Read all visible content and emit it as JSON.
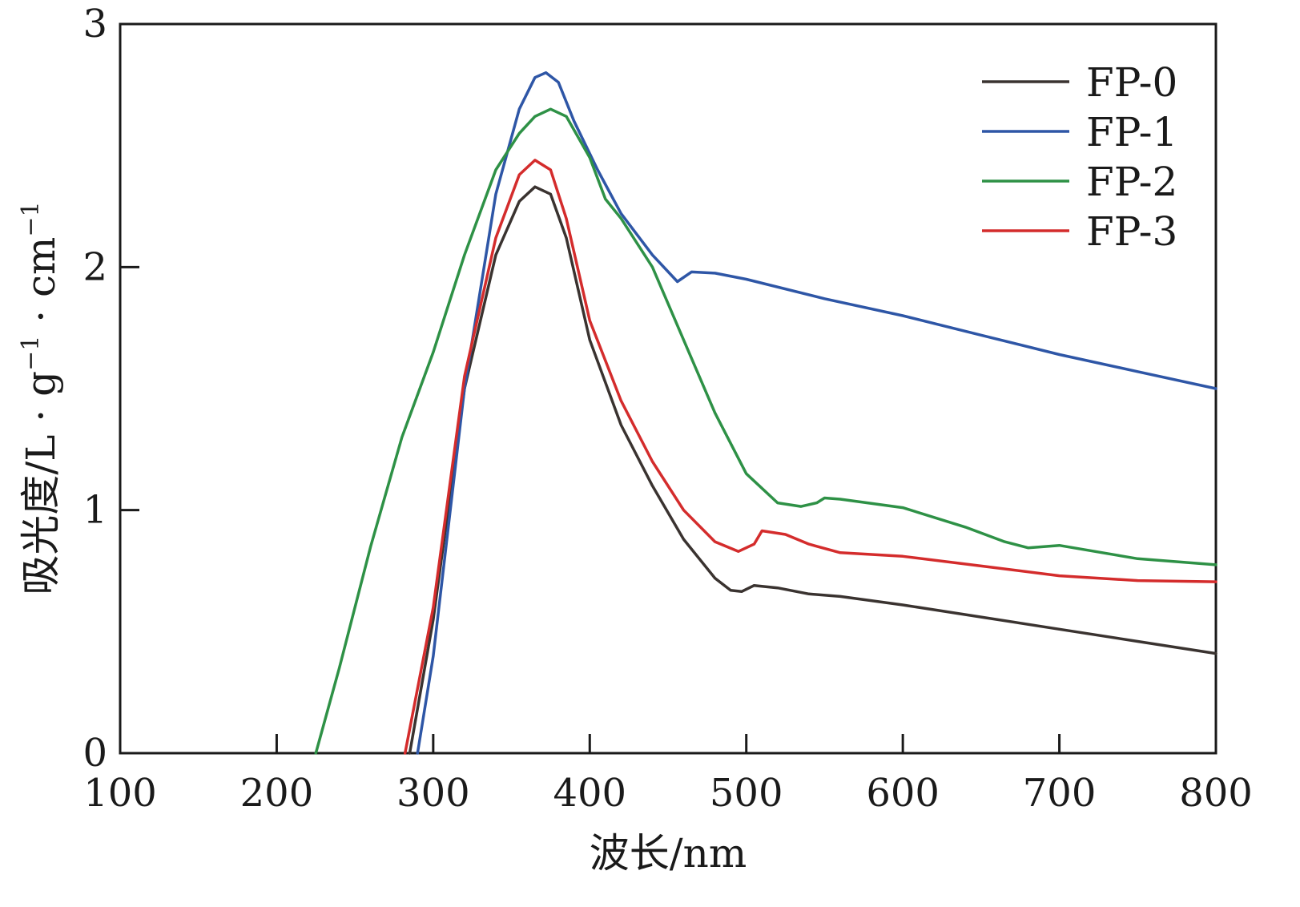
{
  "chart_data": {
    "type": "line",
    "title": "",
    "xlabel": "波长/nm",
    "ylabel": {
      "parts": [
        "吸光度/L · g",
        "−1",
        " · cm",
        "−1"
      ]
    },
    "xlim": [
      100,
      800
    ],
    "ylim": [
      0,
      3
    ],
    "xticks": [
      100,
      200,
      300,
      400,
      500,
      600,
      700,
      800
    ],
    "yticks": [
      0,
      1,
      2,
      3
    ],
    "grid": false,
    "legend_position": "top-right",
    "series": [
      {
        "name": "FP-0",
        "color": "#3a3330",
        "points": [
          [
            285,
            0
          ],
          [
            300,
            0.55
          ],
          [
            320,
            1.5
          ],
          [
            340,
            2.05
          ],
          [
            355,
            2.27
          ],
          [
            365,
            2.33
          ],
          [
            375,
            2.3
          ],
          [
            385,
            2.12
          ],
          [
            400,
            1.7
          ],
          [
            420,
            1.35
          ],
          [
            440,
            1.1
          ],
          [
            460,
            0.88
          ],
          [
            480,
            0.72
          ],
          [
            490,
            0.67
          ],
          [
            497,
            0.665
          ],
          [
            505,
            0.69
          ],
          [
            520,
            0.68
          ],
          [
            540,
            0.655
          ],
          [
            560,
            0.645
          ],
          [
            600,
            0.61
          ],
          [
            650,
            0.56
          ],
          [
            700,
            0.51
          ],
          [
            750,
            0.46
          ],
          [
            800,
            0.41
          ]
        ]
      },
      {
        "name": "FP-1",
        "color": "#2e56a6",
        "points": [
          [
            290,
            0
          ],
          [
            300,
            0.4
          ],
          [
            320,
            1.5
          ],
          [
            340,
            2.3
          ],
          [
            355,
            2.65
          ],
          [
            365,
            2.78
          ],
          [
            372,
            2.8
          ],
          [
            380,
            2.76
          ],
          [
            390,
            2.6
          ],
          [
            405,
            2.4
          ],
          [
            420,
            2.22
          ],
          [
            440,
            2.05
          ],
          [
            456,
            1.94
          ],
          [
            465,
            1.98
          ],
          [
            480,
            1.975
          ],
          [
            500,
            1.95
          ],
          [
            550,
            1.87
          ],
          [
            600,
            1.8
          ],
          [
            650,
            1.72
          ],
          [
            700,
            1.64
          ],
          [
            750,
            1.57
          ],
          [
            800,
            1.5
          ]
        ]
      },
      {
        "name": "FP-2",
        "color": "#2e9146",
        "points": [
          [
            225,
            0
          ],
          [
            240,
            0.35
          ],
          [
            260,
            0.85
          ],
          [
            280,
            1.3
          ],
          [
            300,
            1.65
          ],
          [
            320,
            2.05
          ],
          [
            340,
            2.4
          ],
          [
            355,
            2.55
          ],
          [
            365,
            2.62
          ],
          [
            375,
            2.65
          ],
          [
            385,
            2.62
          ],
          [
            400,
            2.45
          ],
          [
            410,
            2.28
          ],
          [
            420,
            2.2
          ],
          [
            440,
            2.0
          ],
          [
            460,
            1.7
          ],
          [
            480,
            1.4
          ],
          [
            500,
            1.15
          ],
          [
            520,
            1.03
          ],
          [
            535,
            1.015
          ],
          [
            545,
            1.03
          ],
          [
            550,
            1.05
          ],
          [
            560,
            1.045
          ],
          [
            600,
            1.01
          ],
          [
            640,
            0.93
          ],
          [
            665,
            0.87
          ],
          [
            680,
            0.845
          ],
          [
            700,
            0.855
          ],
          [
            750,
            0.8
          ],
          [
            800,
            0.775
          ]
        ]
      },
      {
        "name": "FP-3",
        "color": "#d42c2c",
        "points": [
          [
            282,
            0
          ],
          [
            300,
            0.6
          ],
          [
            320,
            1.55
          ],
          [
            340,
            2.12
          ],
          [
            355,
            2.38
          ],
          [
            365,
            2.44
          ],
          [
            375,
            2.4
          ],
          [
            385,
            2.2
          ],
          [
            400,
            1.78
          ],
          [
            420,
            1.45
          ],
          [
            440,
            1.2
          ],
          [
            460,
            1.0
          ],
          [
            480,
            0.87
          ],
          [
            495,
            0.83
          ],
          [
            505,
            0.86
          ],
          [
            510,
            0.915
          ],
          [
            525,
            0.9
          ],
          [
            540,
            0.86
          ],
          [
            560,
            0.825
          ],
          [
            600,
            0.81
          ],
          [
            650,
            0.77
          ],
          [
            700,
            0.73
          ],
          [
            750,
            0.71
          ],
          [
            800,
            0.705
          ]
        ]
      }
    ]
  }
}
